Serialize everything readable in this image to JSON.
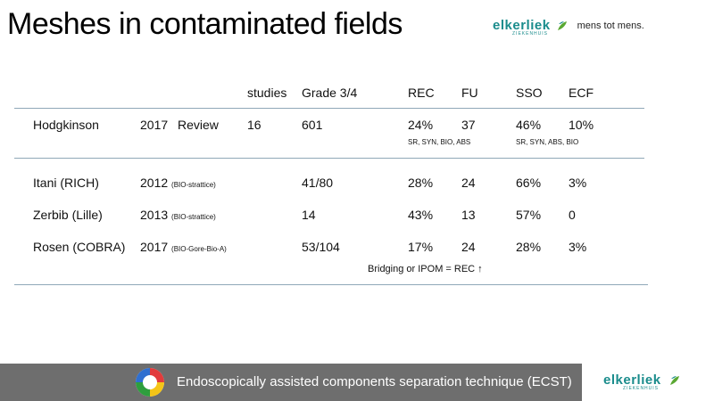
{
  "title": "Meshes in contaminated fields",
  "logo": {
    "name": "elkerliek",
    "sub": "ZIEKENHUIS",
    "tagline": "mens tot mens."
  },
  "table": {
    "headers": {
      "studies": "studies",
      "grade": "Grade 3/4",
      "rec": "REC",
      "fu": "FU",
      "sso": "SSO",
      "ecf": "ECF"
    },
    "review": {
      "name": "Hodgkinson",
      "year": "2017",
      "type": "Review",
      "studies": "16",
      "grade": "601",
      "rec": "24%",
      "fu": "37",
      "sso": "46%",
      "ecf": "10%",
      "rec_note": "SR, SYN, BIO, ABS",
      "sso_note": "SR, SYN, ABS, BIO"
    },
    "rows": [
      {
        "name": "Itani (RICH)",
        "year": "2012",
        "mesh": "(BIO-strattice)",
        "grade": "41/80",
        "rec": "28%",
        "fu": "24",
        "sso": "66%",
        "ecf": "3%"
      },
      {
        "name": "Zerbib (Lille)",
        "year": "2013",
        "mesh": "(BIO-strattice)",
        "grade": "14",
        "rec": "43%",
        "fu": "13",
        "sso": "57%",
        "ecf": "0"
      },
      {
        "name": "Rosen (COBRA)",
        "year": "2017",
        "mesh": "(BIO-Gore-Bio-A)",
        "grade": "53/104",
        "rec": "17%",
        "fu": "24",
        "sso": "28%",
        "ecf": "3%"
      }
    ],
    "note": "Bridging or IPOM = REC ↑"
  },
  "footer": {
    "text": "Endoscopically assisted components separation technique (ECST)"
  },
  "colors": {
    "brand": "#1a8c8c",
    "footer_bg": "#6e6e6e",
    "rule": "#8fa8b8"
  }
}
